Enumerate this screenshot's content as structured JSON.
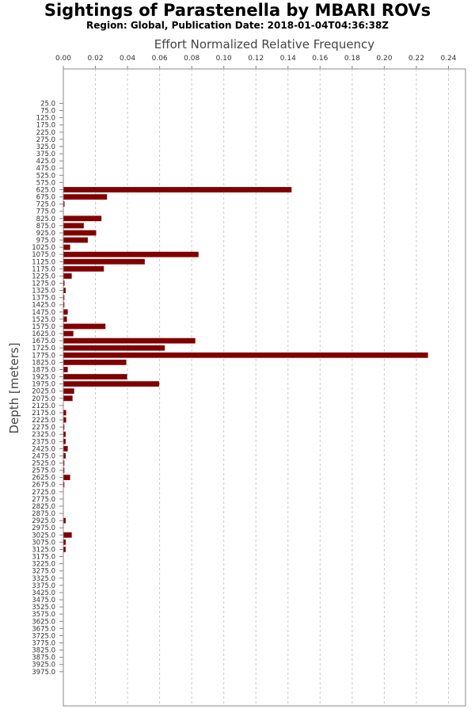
{
  "chart_data": {
    "type": "bar",
    "orientation": "horizontal",
    "title": "Sightings of Parastenella by MBARI ROVs",
    "subtitle": "Region: Global, Publication Date: 2018-01-04T04:36:38Z",
    "xlabel": "Effort Normalized Relative Frequency",
    "ylabel": "Depth [meters]",
    "xlim": [
      0,
      0.25
    ],
    "x_ticks": [
      "0.00",
      "0.02",
      "0.04",
      "0.06",
      "0.08",
      "0.10",
      "0.12",
      "0.14",
      "0.16",
      "0.18",
      "0.20",
      "0.22",
      "0.24"
    ],
    "x_axis_position": "top",
    "grid": true,
    "bar_color": "#800000",
    "categories": [
      "25.0",
      "75.0",
      "125.0",
      "175.0",
      "225.0",
      "275.0",
      "325.0",
      "375.0",
      "425.0",
      "475.0",
      "525.0",
      "575.0",
      "625.0",
      "675.0",
      "725.0",
      "775.0",
      "825.0",
      "875.0",
      "925.0",
      "975.0",
      "1025.0",
      "1075.0",
      "1125.0",
      "1175.0",
      "1225.0",
      "1275.0",
      "1325.0",
      "1375.0",
      "1425.0",
      "1475.0",
      "1525.0",
      "1575.0",
      "1625.0",
      "1675.0",
      "1725.0",
      "1775.0",
      "1825.0",
      "1875.0",
      "1925.0",
      "1975.0",
      "2025.0",
      "2075.0",
      "2125.0",
      "2175.0",
      "2225.0",
      "2275.0",
      "2325.0",
      "2375.0",
      "2425.0",
      "2475.0",
      "2525.0",
      "2575.0",
      "2625.0",
      "2675.0",
      "2725.0",
      "2775.0",
      "2825.0",
      "2875.0",
      "2925.0",
      "2975.0",
      "3025.0",
      "3075.0",
      "3125.0",
      "3175.0",
      "3225.0",
      "3275.0",
      "3325.0",
      "3375.0",
      "3425.0",
      "3475.0",
      "3525.0",
      "3575.0",
      "3625.0",
      "3675.0",
      "3725.0",
      "3775.0",
      "3825.0",
      "3875.0",
      "3925.0",
      "3975.0"
    ],
    "values": [
      0,
      0,
      0,
      0,
      0,
      0,
      0,
      0,
      0,
      0,
      0,
      0,
      0.142,
      0.027,
      0.0005,
      0,
      0.0235,
      0.0125,
      0.0202,
      0.015,
      0.004,
      0.084,
      0.0505,
      0.025,
      0.005,
      0.0005,
      0.0012,
      0.0002,
      0.0002,
      0.0025,
      0.002,
      0.026,
      0.006,
      0.082,
      0.063,
      0.227,
      0.039,
      0.0025,
      0.0395,
      0.0595,
      0.0065,
      0.0055,
      0,
      0.0015,
      0.0015,
      0.0003,
      0.0012,
      0.0012,
      0.0025,
      0.0012,
      0.0002,
      0.0002,
      0.004,
      0.0002,
      0,
      0,
      0,
      0,
      0.0012,
      0,
      0.005,
      0.0012,
      0.0012,
      0,
      0,
      0,
      0,
      0,
      0,
      0,
      0,
      0,
      0,
      0,
      0,
      0,
      0,
      0,
      0,
      0
    ]
  }
}
